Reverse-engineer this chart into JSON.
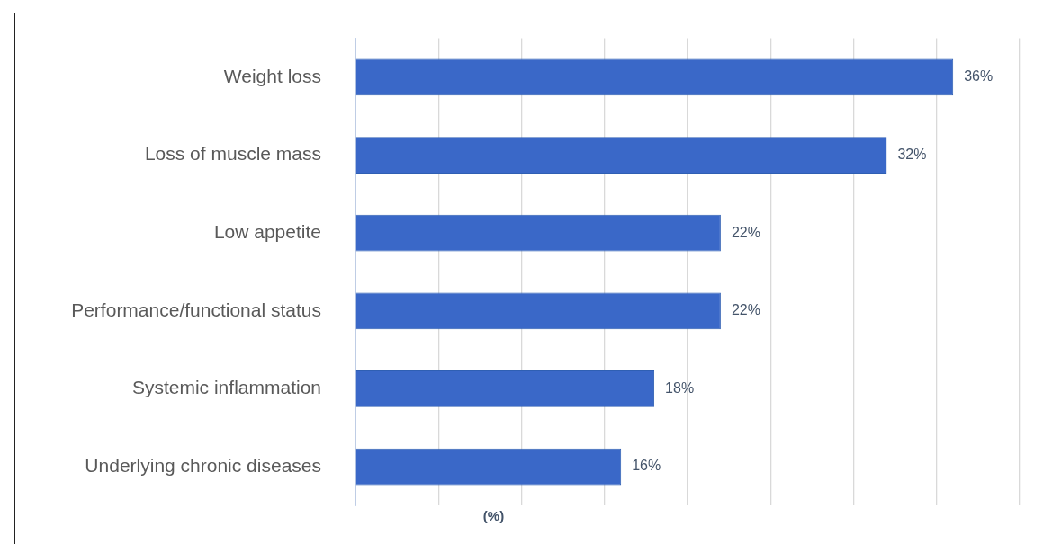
{
  "chart_data": {
    "type": "bar",
    "orientation": "horizontal",
    "xlabel": "(%)",
    "categories": [
      "Weight loss",
      "Loss of muscle mass",
      "Low appetite",
      "Performance/functional status",
      "Systemic inflammation",
      "Underlying chronic diseases"
    ],
    "values": [
      36,
      32,
      22,
      22,
      18,
      16
    ],
    "value_labels": [
      "36%",
      "32%",
      "22%",
      "22%",
      "18%",
      "16%"
    ],
    "color": "#3a68c8",
    "xlim": [
      0,
      40
    ],
    "xticks": [
      {
        "value": 0,
        "label": null
      },
      {
        "value": 5,
        "label": null
      },
      {
        "value": 10,
        "label": null
      },
      {
        "value": 15,
        "label": null
      },
      {
        "value": 20,
        "label": null
      },
      {
        "value": 25,
        "label": null
      },
      {
        "value": 30,
        "label": null
      },
      {
        "value": 35,
        "label": null
      },
      {
        "value": 40,
        "label": null
      }
    ],
    "grid": "x",
    "tick_labels": "y",
    "legend": false
  }
}
